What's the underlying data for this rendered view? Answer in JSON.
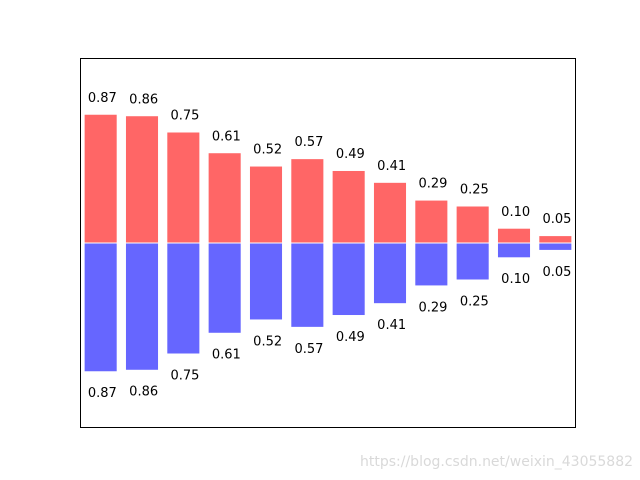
{
  "chart_data": {
    "type": "bar",
    "title": "",
    "xlabel": "",
    "ylabel": "",
    "ticks_visible": false,
    "ylim": [
      -1.25,
      1.25
    ],
    "x": [
      0,
      1,
      2,
      3,
      4,
      5,
      6,
      7,
      8,
      9,
      10,
      11
    ],
    "xlim": [
      -0.5,
      11.5
    ],
    "series": [
      {
        "direction": "up",
        "color": "#ff6666",
        "values": [
          0.87,
          0.86,
          0.75,
          0.61,
          0.52,
          0.57,
          0.49,
          0.41,
          0.29,
          0.25,
          0.1,
          0.05
        ],
        "labels": [
          "0.87",
          "0.86",
          "0.75",
          "0.61",
          "0.52",
          "0.57",
          "0.49",
          "0.41",
          "0.29",
          "0.25",
          "0.10",
          "0.05"
        ]
      },
      {
        "direction": "down",
        "color": "#6666ff",
        "values": [
          -0.87,
          -0.86,
          -0.75,
          -0.61,
          -0.52,
          -0.57,
          -0.49,
          -0.41,
          -0.29,
          -0.25,
          -0.1,
          -0.05
        ],
        "labels": [
          "0.87",
          "0.86",
          "0.75",
          "0.61",
          "0.52",
          "0.57",
          "0.49",
          "0.41",
          "0.29",
          "0.25",
          "0.10",
          "0.05"
        ]
      }
    ]
  },
  "watermark": "https://blog.csdn.net/weixin_43055882"
}
